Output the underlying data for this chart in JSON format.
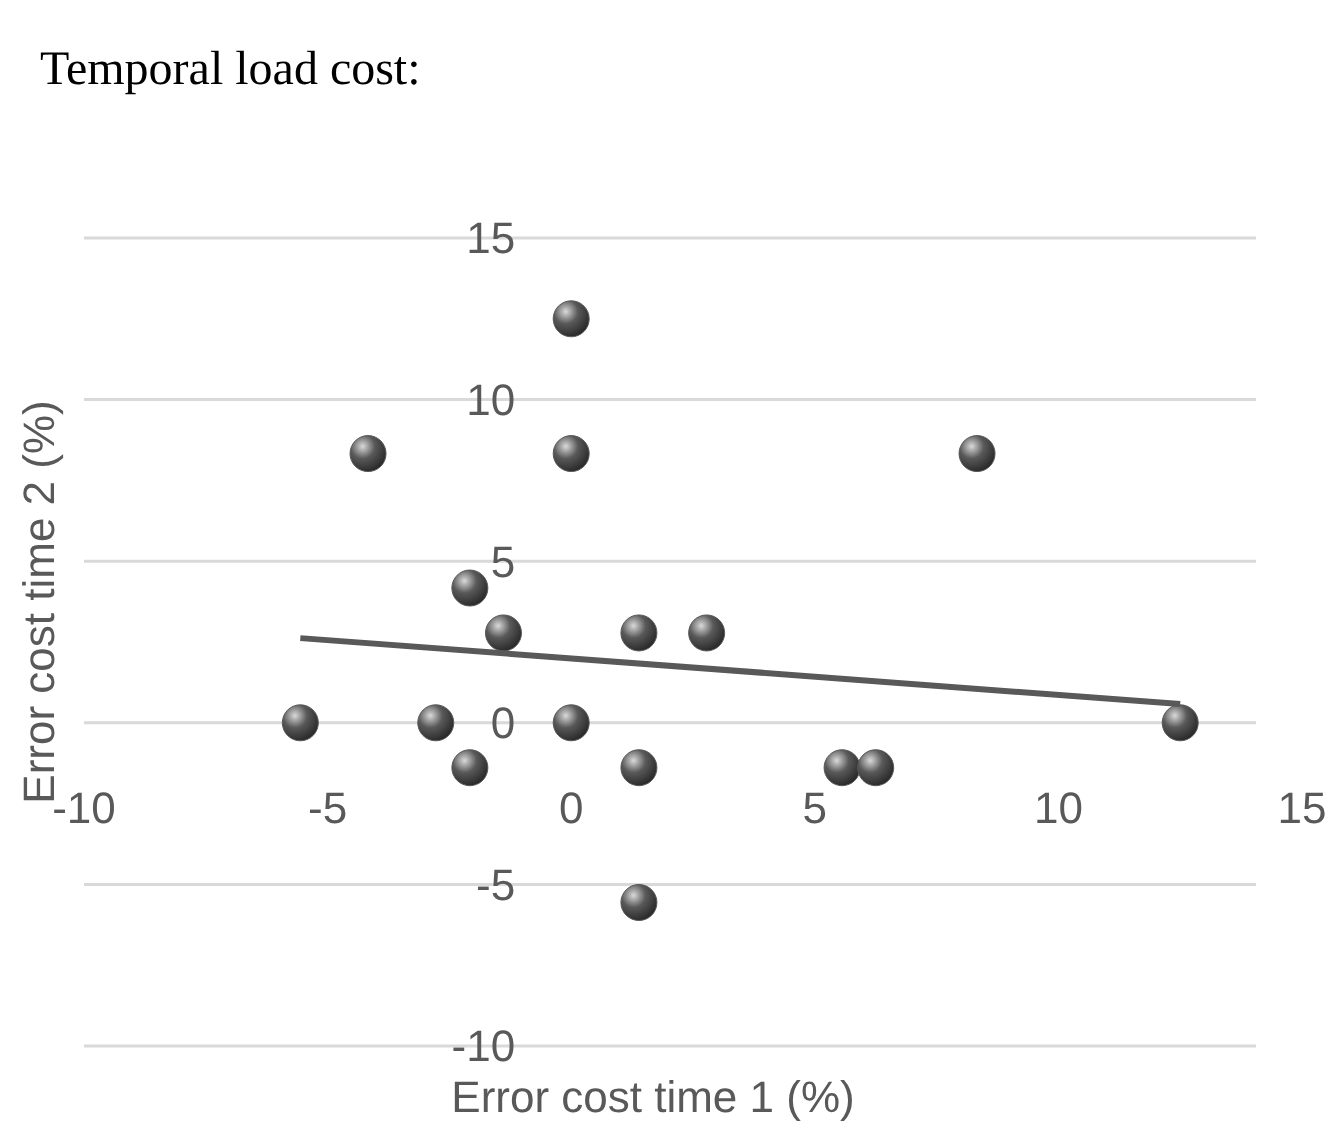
{
  "chart_data": {
    "type": "scatter",
    "title": "Temporal load cost:",
    "xlabel": "Error cost time 1 (%)",
    "ylabel": "Error cost time 2 (%)",
    "xlim": [
      -10,
      15
    ],
    "xticks": [
      -10,
      -5,
      0,
      5,
      10,
      15
    ],
    "ylim": [
      -10,
      15
    ],
    "yticks": [
      -10,
      -5,
      0,
      5,
      10,
      15
    ],
    "grid": "y",
    "marker": "circle",
    "series": [
      {
        "color": "#595959",
        "x": [
          -5.56,
          -4.17,
          0,
          0,
          8.33,
          -2.08,
          -1.39,
          1.39,
          2.78,
          -2.78,
          0,
          12.5,
          -2.08,
          1.39,
          5.56,
          6.25,
          1.39
        ],
        "values": [
          0,
          8.33,
          12.5,
          8.33,
          8.33,
          4.17,
          2.78,
          2.78,
          2.78,
          0,
          0,
          0,
          -1.39,
          -1.39,
          -1.39,
          -1.39,
          -5.56
        ]
      },
      {
        "type": "line",
        "color": "#595959",
        "x": [
          -5.56,
          12.5
        ],
        "values": [
          2.62,
          0.58
        ],
        "marker": "none",
        "line_style": "solid"
      }
    ]
  }
}
